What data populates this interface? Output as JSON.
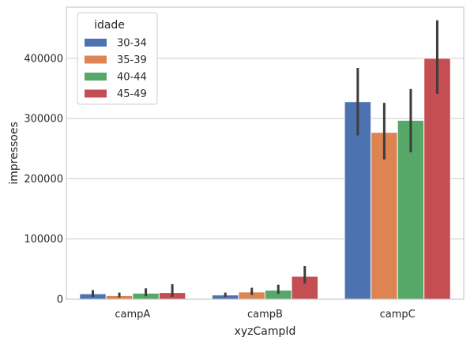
{
  "chart_data": {
    "type": "bar",
    "categories": [
      "campA",
      "campB",
      "campC"
    ],
    "xlabel": "xyzCampId",
    "ylabel": "impressoes",
    "ylim": [
      0,
      485000
    ],
    "yticks": [
      0,
      100000,
      200000,
      300000,
      400000
    ],
    "grid": "horizontal",
    "legend": {
      "title": "idade",
      "placement": "top-left"
    },
    "series": [
      {
        "name": "30-34",
        "color": "#4c72b0",
        "values": [
          9000,
          7000,
          328000
        ],
        "ci": [
          [
            4000,
            15000
          ],
          [
            4000,
            11000
          ],
          [
            272000,
            384000
          ]
        ]
      },
      {
        "name": "35-39",
        "color": "#dd8452",
        "values": [
          6000,
          12000,
          277000
        ],
        "ci": [
          [
            3000,
            11000
          ],
          [
            7000,
            19000
          ],
          [
            232000,
            326000
          ]
        ]
      },
      {
        "name": "40-44",
        "color": "#55a868",
        "values": [
          10000,
          15000,
          297000
        ],
        "ci": [
          [
            5000,
            18000
          ],
          [
            9000,
            24000
          ],
          [
            244000,
            349000
          ]
        ]
      },
      {
        "name": "45-49",
        "color": "#c44e52",
        "values": [
          11000,
          38000,
          400000
        ],
        "ci": [
          [
            4000,
            25000
          ],
          [
            26000,
            55000
          ],
          [
            341000,
            463000
          ]
        ]
      }
    ]
  }
}
